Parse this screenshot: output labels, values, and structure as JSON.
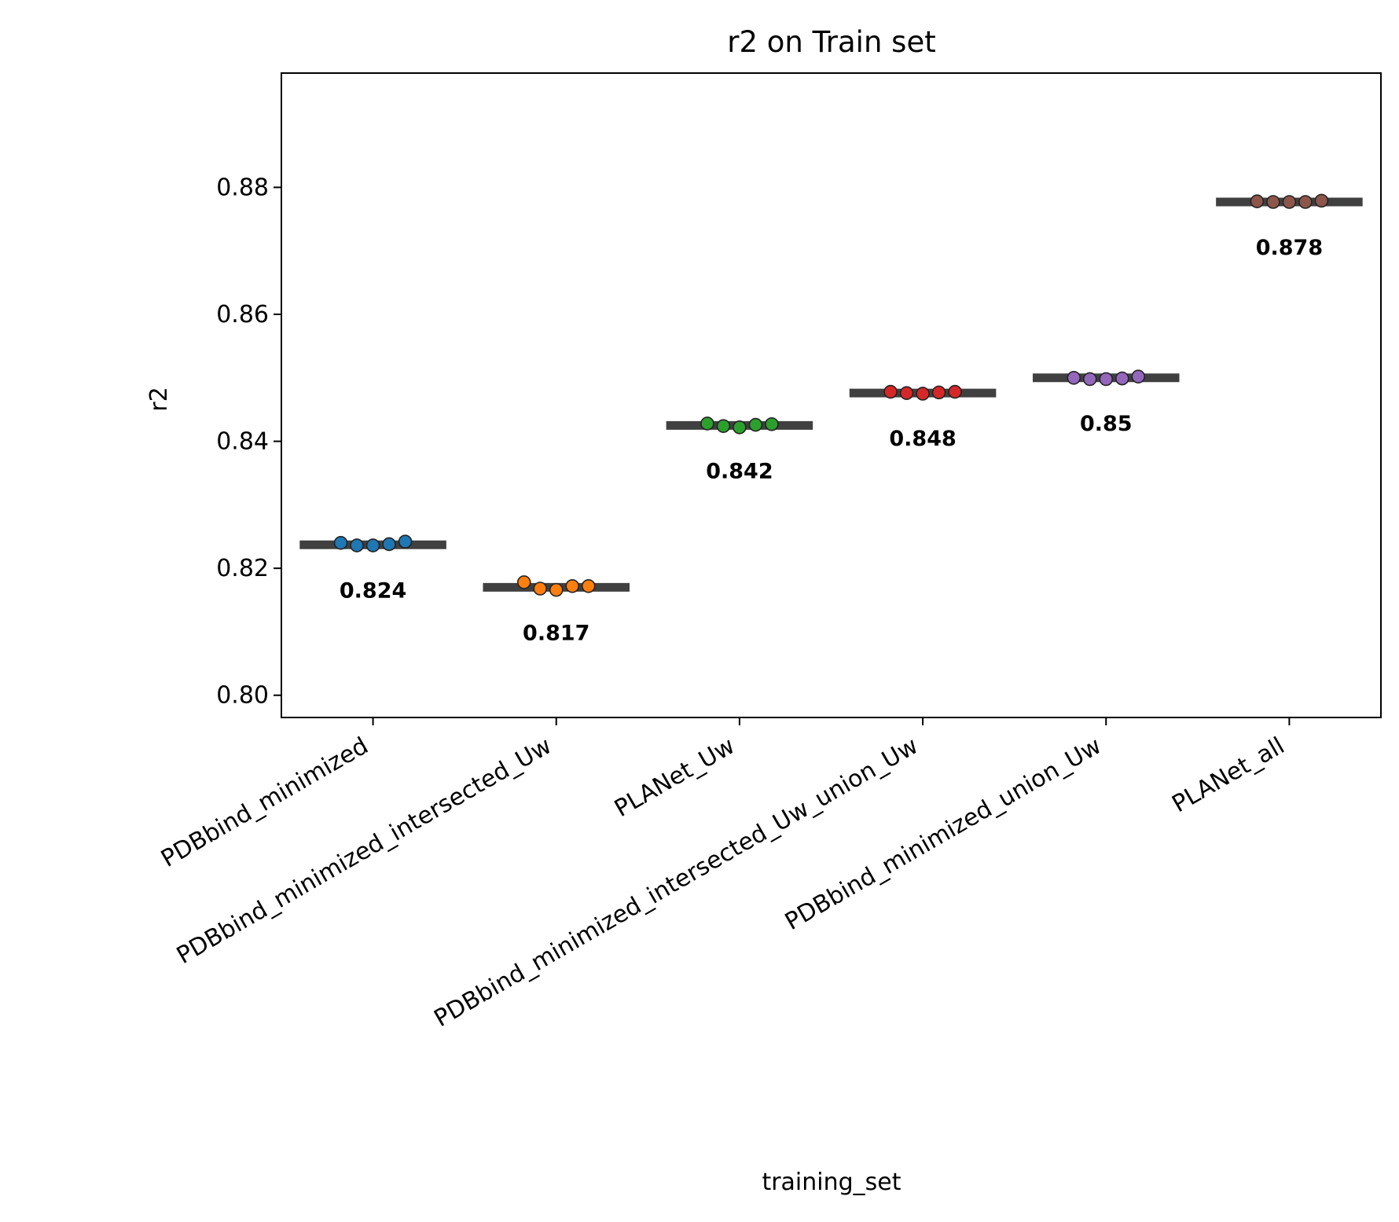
{
  "chart_data": {
    "type": "strip",
    "title": "r2 on Train set",
    "xlabel": "training_set",
    "ylabel": "r2",
    "ylim": [
      0.7965,
      0.898
    ],
    "yticks": [
      "0.80",
      "0.82",
      "0.84",
      "0.86",
      "0.88"
    ],
    "categories": [
      "PDBbind_minimized",
      "PDBbind_minimized_intersected_Uw",
      "PLANet_Uw",
      "PDBbind_minimized_intersected_Uw_union_Uw",
      "PDBbind_minimized_union_Uw",
      "PLANet_all"
    ],
    "groups": [
      {
        "color": "#1f77b4",
        "mean": 0.8237,
        "label": "0.824",
        "points": [
          0.824,
          0.8236,
          0.8236,
          0.8238,
          0.8242
        ]
      },
      {
        "color": "#ff7f0e",
        "mean": 0.817,
        "label": "0.817",
        "points": [
          0.8178,
          0.8168,
          0.8166,
          0.8172,
          0.8172
        ]
      },
      {
        "color": "#2ca02c",
        "mean": 0.8425,
        "label": "0.842",
        "points": [
          0.8428,
          0.8424,
          0.8422,
          0.8426,
          0.8427
        ]
      },
      {
        "color": "#d62728",
        "mean": 0.8476,
        "label": "0.848",
        "points": [
          0.8478,
          0.8476,
          0.8475,
          0.8477,
          0.8478
        ]
      },
      {
        "color": "#9467bd",
        "mean": 0.85,
        "label": "0.85",
        "points": [
          0.85,
          0.8498,
          0.8498,
          0.8499,
          0.8502
        ]
      },
      {
        "color": "#8c564b",
        "mean": 0.8777,
        "label": "0.878",
        "points": [
          0.8778,
          0.8777,
          0.8777,
          0.8777,
          0.8779
        ]
      }
    ],
    "mean_line_color": "#404040",
    "grid": false,
    "legend": "none"
  }
}
